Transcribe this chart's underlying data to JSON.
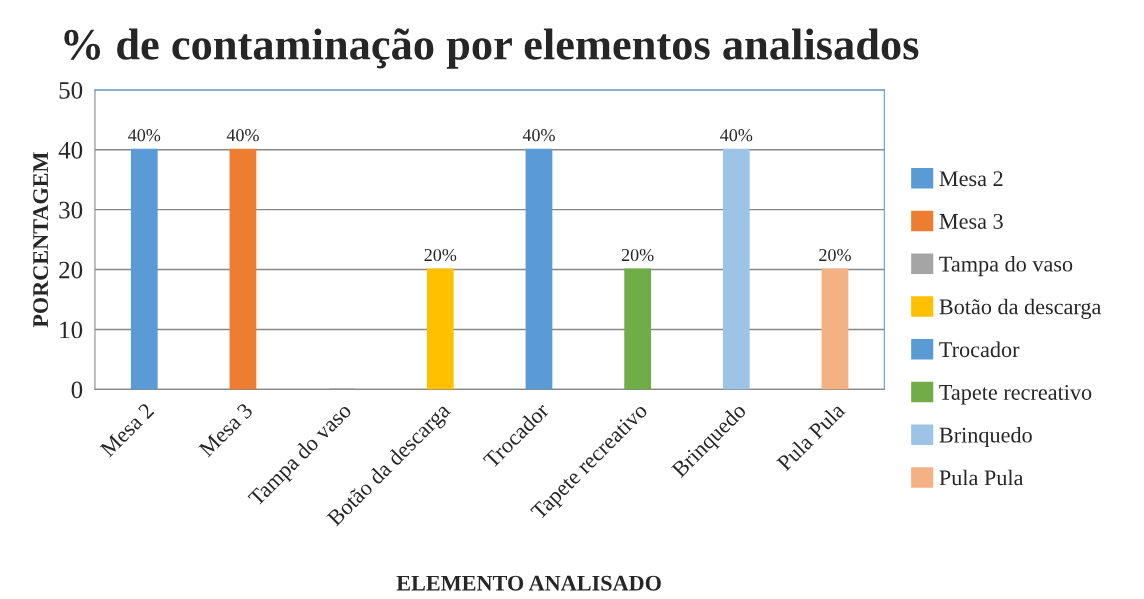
{
  "chart_data": {
    "type": "bar",
    "title": "% de contaminação por elementos analisados",
    "xlabel": "ELEMENTO ANALISADO",
    "ylabel": "PORCENTAGEM",
    "categories": [
      "Mesa 2",
      "Mesa 3",
      "Tampa do vaso",
      "Botão da descarga",
      "Trocador",
      "Tapete recreativo",
      "Brinquedo",
      "Pula Pula"
    ],
    "series": [
      {
        "name": "Mesa 2",
        "color": "#5b9bd5",
        "values": [
          40,
          null,
          null,
          null,
          null,
          null,
          null,
          null
        ],
        "value_labels": [
          "40%",
          null,
          null,
          null,
          null,
          null,
          null,
          null
        ]
      },
      {
        "name": "Mesa 3",
        "color": "#ed7d31",
        "values": [
          null,
          40,
          null,
          null,
          null,
          null,
          null,
          null
        ],
        "value_labels": [
          null,
          "40%",
          null,
          null,
          null,
          null,
          null,
          null
        ]
      },
      {
        "name": "Tampa do vaso",
        "color": "#a5a5a5",
        "values": [
          null,
          null,
          0,
          null,
          null,
          null,
          null,
          null
        ]
      },
      {
        "name": "Botão da descarga",
        "color": "#ffc000",
        "values": [
          null,
          null,
          null,
          20,
          null,
          null,
          null,
          null
        ],
        "value_labels": [
          null,
          null,
          null,
          "20%",
          null,
          null,
          null,
          null
        ]
      },
      {
        "name": "Trocador",
        "color": "#5b9bd5",
        "values": [
          null,
          null,
          null,
          null,
          40,
          null,
          null,
          null
        ],
        "value_labels": [
          null,
          null,
          null,
          null,
          "40%",
          null,
          null,
          null
        ]
      },
      {
        "name": "Tapete recreativo",
        "color": "#70ad47",
        "values": [
          null,
          null,
          null,
          null,
          null,
          20,
          null,
          null
        ],
        "value_labels": [
          null,
          null,
          null,
          null,
          null,
          "20%",
          null,
          null
        ]
      },
      {
        "name": "Brinquedo",
        "color": "#9dc3e6",
        "values": [
          null,
          null,
          null,
          null,
          null,
          null,
          40,
          null
        ],
        "value_labels": [
          null,
          null,
          null,
          null,
          null,
          null,
          "40%",
          null
        ]
      },
      {
        "name": "Pula Pula",
        "color": "#f4b183",
        "values": [
          null,
          null,
          null,
          null,
          null,
          null,
          null,
          20
        ],
        "value_labels": [
          null,
          null,
          null,
          null,
          null,
          null,
          null,
          "20%"
        ]
      }
    ],
    "ylim": [
      0,
      50
    ],
    "yticks": [
      0,
      10,
      20,
      30,
      40,
      50
    ],
    "grid": "y",
    "legend": "right"
  }
}
